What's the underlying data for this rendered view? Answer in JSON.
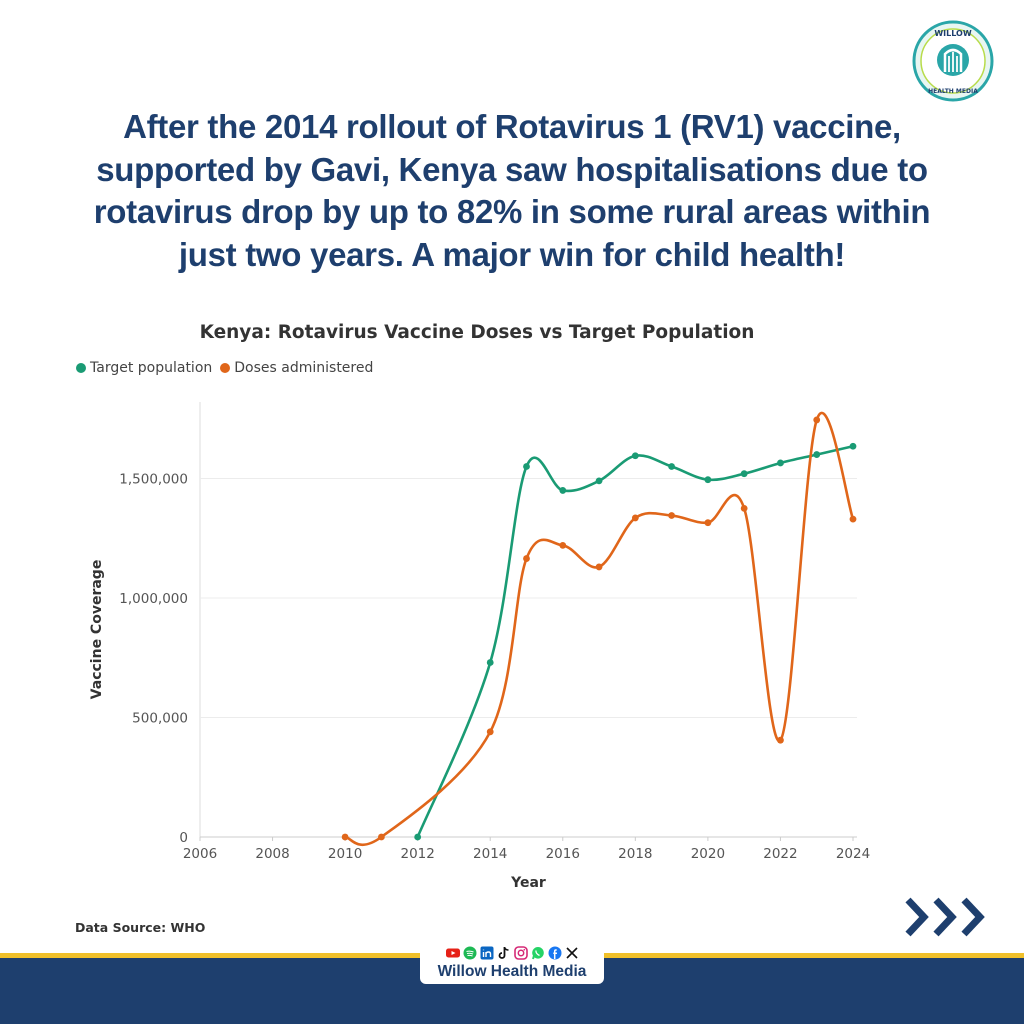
{
  "page": {
    "headline": "After the 2014 rollout of Rotavirus 1 (RV1) vaccine, supported by Gavi, Kenya saw hospitalisations due to rotavirus drop by up to 82% in some rural areas within just two years. A major win for child health!",
    "source": "Data Source: WHO",
    "brand_name": "Willow Health Media",
    "logo": {
      "icon": "willow-health-media-logo",
      "text": "WILLOW HEALTH MEDIA"
    },
    "social_icons": [
      "youtube-icon",
      "spotify-icon",
      "linkedin-icon",
      "tiktok-icon",
      "instagram-icon",
      "whatsapp-icon",
      "facebook-icon",
      "x-icon"
    ],
    "next_icon": "triple-chevron-right-icon",
    "colors": {
      "navy": "#1e3f6e",
      "gold": "#f0c02a",
      "target": "#1a9b74",
      "doses": "#e0661a"
    }
  },
  "chart_data": {
    "type": "line",
    "title": "Kenya: Rotavirus Vaccine Doses vs Target Population",
    "xlabel": "Year",
    "ylabel": "Vaccine Coverage",
    "xlim": [
      2006,
      2024
    ],
    "ylim": [
      0,
      1820000
    ],
    "x_ticks": [
      "2006",
      "2008",
      "2010",
      "2012",
      "2014",
      "2016",
      "2018",
      "2020",
      "2022",
      "2024"
    ],
    "y_ticks": [
      "0",
      "500,000",
      "1,000,000",
      "1,500,000"
    ],
    "grid": "horizontal",
    "legend_position": "top-left",
    "series": [
      {
        "name": "Target population",
        "color": "#1a9b74",
        "x": [
          2012,
          2014,
          2015,
          2016,
          2017,
          2018,
          2019,
          2020,
          2021,
          2022,
          2023,
          2024
        ],
        "y": [
          0,
          730000,
          1550000,
          1450000,
          1490000,
          1595000,
          1550000,
          1495000,
          1520000,
          1565000,
          1600000,
          1635000
        ]
      },
      {
        "name": "Doses administered",
        "color": "#e0661a",
        "x": [
          2010,
          2011,
          2014,
          2015,
          2016,
          2017,
          2018,
          2019,
          2020,
          2021,
          2022,
          2023,
          2024
        ],
        "y": [
          0,
          0,
          440000,
          1165000,
          1220000,
          1130000,
          1335000,
          1345000,
          1315000,
          1375000,
          405000,
          1745000,
          1330000
        ]
      }
    ]
  }
}
